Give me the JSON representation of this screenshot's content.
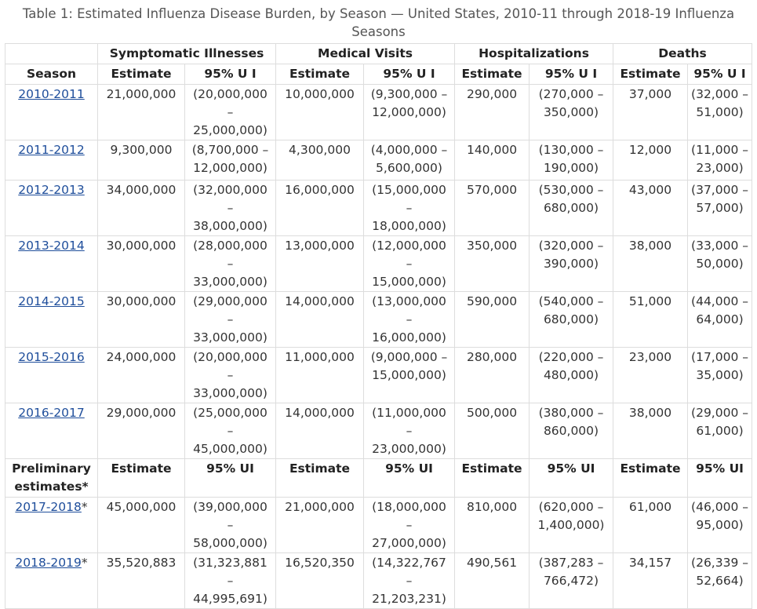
{
  "caption": "Table 1: Estimated Influenza Disease Burden, by Season — United States, 2010-11 through 2018-19 Influenza Seasons",
  "group_headers": [
    "Symptomatic Illnesses",
    "Medical Visits",
    "Hospitalizations",
    "Deaths"
  ],
  "sub_headers": {
    "season": "Season",
    "estimate": "Estimate",
    "ui": "95% U I"
  },
  "prelim_headers": {
    "season": "Preliminary estimates*",
    "estimate": "Estimate",
    "ui": "95% UI"
  },
  "rows": [
    {
      "season": "2010-2011",
      "star": "",
      "ill": "21,000,000",
      "ill_ui": "(20,000,000 – 25,000,000)",
      "med": "10,000,000",
      "med_ui": "(9,300,000 – 12,000,000)",
      "hosp": "290,000",
      "hosp_ui": "(270,000 – 350,000)",
      "death": "37,000",
      "death_ui": "(32,000 – 51,000)"
    },
    {
      "season": "2011-2012",
      "star": "",
      "ill": "9,300,000",
      "ill_ui": "(8,700,000 – 12,000,000)",
      "med": "4,300,000",
      "med_ui": "(4,000,000 – 5,600,000)",
      "hosp": "140,000",
      "hosp_ui": "(130,000 – 190,000)",
      "death": "12,000",
      "death_ui": "(11,000 – 23,000)"
    },
    {
      "season": "2012-2013",
      "star": "",
      "ill": "34,000,000",
      "ill_ui": "(32,000,000 – 38,000,000)",
      "med": "16,000,000",
      "med_ui": "(15,000,000 – 18,000,000)",
      "hosp": "570,000",
      "hosp_ui": "(530,000 – 680,000)",
      "death": "43,000",
      "death_ui": "(37,000 – 57,000)"
    },
    {
      "season": "2013-2014",
      "star": "",
      "ill": "30,000,000",
      "ill_ui": "(28,000,000 – 33,000,000)",
      "med": "13,000,000",
      "med_ui": "(12,000,000 – 15,000,000)",
      "hosp": "350,000",
      "hosp_ui": "(320,000 – 390,000)",
      "death": "38,000",
      "death_ui": "(33,000 – 50,000)"
    },
    {
      "season": "2014-2015",
      "star": "",
      "ill": "30,000,000",
      "ill_ui": "(29,000,000 – 33,000,000)",
      "med": "14,000,000",
      "med_ui": "(13,000,000 – 16,000,000)",
      "hosp": "590,000",
      "hosp_ui": "(540,000 – 680,000)",
      "death": "51,000",
      "death_ui": "(44,000 – 64,000)"
    },
    {
      "season": "2015-2016",
      "star": "",
      "ill": "24,000,000",
      "ill_ui": "(20,000,000 – 33,000,000)",
      "med": "11,000,000",
      "med_ui": "(9,000,000 – 15,000,000)",
      "hosp": "280,000",
      "hosp_ui": "(220,000 – 480,000)",
      "death": "23,000",
      "death_ui": "(17,000 – 35,000)"
    },
    {
      "season": "2016-2017",
      "star": "",
      "ill": "29,000,000",
      "ill_ui": "(25,000,000 – 45,000,000)",
      "med": "14,000,000",
      "med_ui": "(11,000,000 – 23,000,000)",
      "hosp": "500,000",
      "hosp_ui": "(380,000 – 860,000)",
      "death": "38,000",
      "death_ui": "(29,000 – 61,000)"
    }
  ],
  "prelim_rows": [
    {
      "season": "2017-2018",
      "star": "*",
      "ill": "45,000,000",
      "ill_ui": "(39,000,000 – 58,000,000)",
      "med": "21,000,000",
      "med_ui": "(18,000,000 – 27,000,000)",
      "hosp": "810,000",
      "hosp_ui": "(620,000 – 1,400,000)",
      "death": "61,000",
      "death_ui": "(46,000 – 95,000)"
    },
    {
      "season": "2018-2019",
      "star": "*",
      "ill": "35,520,883",
      "ill_ui": "(31,323,881 – 44,995,691)",
      "med": "16,520,350",
      "med_ui": "(14,322,767 – 21,203,231)",
      "hosp": "490,561",
      "hosp_ui": "(387,283 – 766,472)",
      "death": "34,157",
      "death_ui": "(26,339 – 52,664)"
    }
  ],
  "colors": {
    "link": "#1f4e9b",
    "border": "#dddddd",
    "caption": "#555555"
  }
}
